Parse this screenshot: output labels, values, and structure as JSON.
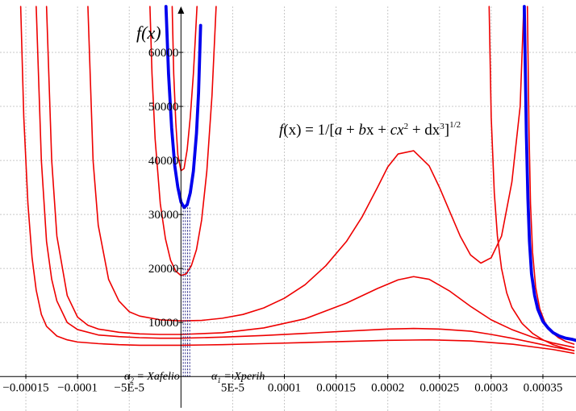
{
  "chart_data": {
    "type": "line",
    "title": "",
    "ylabel": "f(x)",
    "xlabel": "",
    "xlim": [
      -0.000175,
      0.000382
    ],
    "ylim": [
      -1300,
      68500
    ],
    "grid": true,
    "x_ticks": [
      {
        "value": -0.00015,
        "label": "−0.00015"
      },
      {
        "value": -0.0001,
        "label": "−0.0001"
      },
      {
        "value": -5e-05,
        "label": "−5E-5"
      },
      {
        "value": 5e-05,
        "label": "5E-5"
      },
      {
        "value": 0.0001,
        "label": "0.0001"
      },
      {
        "value": 0.00015,
        "label": "0.00015"
      },
      {
        "value": 0.0002,
        "label": "0.0002"
      },
      {
        "value": 0.00025,
        "label": "0.00025"
      },
      {
        "value": 0.0003,
        "label": "0.0003"
      },
      {
        "value": 0.00035,
        "label": "0.00035"
      }
    ],
    "y_ticks": [
      {
        "value": 10000,
        "label": "10000"
      },
      {
        "value": 20000,
        "label": "20000"
      },
      {
        "value": 30000,
        "label": "30000"
      },
      {
        "value": 40000,
        "label": "40000"
      },
      {
        "value": 50000,
        "label": "50000"
      },
      {
        "value": 60000,
        "label": "60000"
      }
    ],
    "formula": {
      "f": "f",
      "x1": "(x) = 1/[",
      "a": "a",
      "p1": " + ",
      "b": "b",
      "x2": "x + ",
      "c": "c",
      "x3": "x",
      "sq": "2",
      "p2": " + dx",
      "cu": "3",
      "close": "]",
      "pow": "1/2"
    },
    "annotations": {
      "alpha2": {
        "alpha": "α",
        "sub": "2",
        "text": " = Xafelio"
      },
      "alpha1": {
        "alpha": "α",
        "sub": "1",
        "text": " = Xperih"
      }
    },
    "markers": {
      "x_values": [
        2.2e-06,
        4.3e-06,
        6.4e-06,
        8.5e-06
      ]
    },
    "series": [
      {
        "color": "#0000ee",
        "width": 3.8,
        "segments": [
          {
            "x": [
              -1.45e-05,
              -1.2e-05,
              -9e-06,
              -6e-06,
              -3e-06,
              0.0,
              3e-06,
              6e-06,
              9e-06,
              1.2e-05,
              1.5e-05,
              1.7e-05,
              1.9e-05
            ],
            "y": [
              68500,
              56000,
              46000,
              39000,
              35000,
              32300,
              31300,
              31800,
              34000,
              38000,
              45000,
              52500,
              65000
            ]
          },
          {
            "x": [
              0.000332,
              0.000334,
              0.0003355,
              0.000337,
              0.000339,
              0.000342,
              0.000345,
              0.00035,
              0.000355,
              0.00036,
              0.000366,
              0.000372,
              0.000378,
              0.000382
            ],
            "y": [
              68500,
              45000,
              33000,
              25000,
              19000,
              15000,
              12500,
              10200,
              9000,
              8100,
              7500,
              7100,
              6900,
              6700
            ]
          }
        ]
      },
      {
        "color": "#ee0000",
        "width": 1.6,
        "segments": [
          {
            "x": [
              -8.5e-06,
              -7e-06,
              -5e-06,
              -3e-06,
              0.0,
              3e-06,
              6e-06,
              9e-06,
              1.2e-05,
              1.4e-05,
              1.55e-05
            ],
            "y": [
              68500,
              56000,
              47000,
              41000,
              38100,
              38500,
              42000,
              48000,
              56000,
              63000,
              68500
            ]
          }
        ]
      },
      {
        "color": "#ee0000",
        "width": 1.6,
        "segments": [
          {
            "x": [
              -3e-05,
              -2.8e-05,
              -2.5e-05,
              -2e-05,
              -1.5e-05,
              -1e-05,
              -5e-06,
              0.0,
              5e-06,
              1e-05,
              1.5e-05,
              2e-05,
              2.5e-05,
              3e-05,
              3.4e-05
            ],
            "y": [
              68500,
              56000,
              44000,
              32000,
              25500,
              21500,
              19500,
              18700,
              19000,
              20500,
              23500,
              29000,
              38000,
              52000,
              68500
            ]
          }
        ]
      },
      {
        "color": "#ee0000",
        "width": 1.6,
        "segments": [
          {
            "x": [
              -9e-05,
              -8.5e-05,
              -8e-05,
              -7e-05,
              -6e-05,
              -5e-05,
              -4e-05,
              -2e-05,
              0.0,
              2e-05,
              4e-05,
              6e-05,
              8e-05,
              0.0001,
              0.00012,
              0.00014,
              0.00016,
              0.000175,
              0.00019,
              0.0002,
              0.00021,
              0.000225,
              0.00024,
              0.00025,
              0.00026,
              0.00027,
              0.00028,
              0.00029,
              0.0003,
              0.00031,
              0.00032,
              0.000328,
              0.0003315
            ],
            "y": [
              68500,
              40000,
              28000,
              18000,
              14000,
              12000,
              11200,
              10500,
              10300,
              10400,
              10800,
              11500,
              12700,
              14500,
              17000,
              20500,
              25000,
              29500,
              35000,
              38800,
              41200,
              41800,
              39000,
              35000,
              30500,
              26000,
              22500,
              21000,
              22000,
              26000,
              36000,
              50000,
              68500
            ]
          }
        ]
      },
      {
        "color": "#ee0000",
        "width": 1.6,
        "segments": [
          {
            "x": [
              -0.00013,
              -0.000125,
              -0.00012,
              -0.00011,
              -0.0001,
              -9e-05,
              -8e-05,
              -6e-05,
              -4e-05,
              -2e-05,
              0.0,
              4e-05,
              8e-05,
              0.00012,
              0.00016,
              0.00019,
              0.00021,
              0.000225,
              0.00024,
              0.00026,
              0.00028,
              0.0003,
              0.00032,
              0.00034,
              0.00036,
              0.00038
            ],
            "y": [
              68500,
              40000,
              26000,
              15000,
              11000,
              9500,
              8800,
              8200,
              7900,
              7800,
              7800,
              8100,
              9000,
              10700,
              13600,
              16300,
              17900,
              18500,
              18000,
              15800,
              13000,
              10500,
              8700,
              7300,
              6200,
              5400
            ]
          }
        ]
      },
      {
        "color": "#ee0000",
        "width": 1.6,
        "segments": [
          {
            "x": [
              -0.00014,
              -0.000135,
              -0.00013,
              -0.000125,
              -0.00012,
              -0.00011,
              -0.0001,
              -8e-05,
              -6e-05,
              -4e-05,
              -2e-05,
              0.0,
              4e-05,
              8e-05,
              0.00012,
              0.00016,
              0.0002,
              0.000225,
              0.00025,
              0.00028,
              0.0003,
              0.00032,
              0.00034,
              0.00036,
              0.00038
            ],
            "y": [
              68500,
              40000,
              25000,
              18000,
              14000,
              10000,
              8700,
              7700,
              7400,
              7200,
              7100,
              7100,
              7300,
              7600,
              8000,
              8400,
              8800,
              8900,
              8800,
              8400,
              7800,
              7100,
              6300,
              5500,
              4800
            ]
          }
        ]
      },
      {
        "color": "#ee0000",
        "width": 1.6,
        "segments": [
          {
            "x": [
              -0.000155,
              -0.000152,
              -0.000148,
              -0.000144,
              -0.00014,
              -0.000135,
              -0.00013,
              -0.00012,
              -0.00011,
              -0.0001,
              -8e-05,
              -6e-05,
              -4e-05,
              0.0,
              4e-05,
              8e-05,
              0.00012,
              0.00016,
              0.0002,
              0.00024,
              0.00028,
              0.00032,
              0.00036,
              0.00038
            ],
            "y": [
              68500,
              48000,
              32000,
              22000,
              16000,
              11500,
              9300,
              7500,
              6800,
              6400,
              6100,
              5900,
              5800,
              5800,
              5900,
              6100,
              6300,
              6500,
              6700,
              6800,
              6600,
              6000,
              5000,
              4300
            ]
          }
        ]
      },
      {
        "color": "#ee0000",
        "width": 1.6,
        "segments": [
          {
            "x": [
              0.000298,
              0.0003,
              0.000303,
              0.000306,
              0.00031,
              0.000315,
              0.00032,
              0.00033,
              0.00034,
              0.00035,
              0.00036,
              0.00037,
              0.00038
            ],
            "y": [
              68500,
              48000,
              34000,
              26000,
              20000,
              15500,
              12800,
              9800,
              8000,
              6800,
              5900,
              5300,
              4800
            ]
          }
        ]
      },
      {
        "color": "#ee0000",
        "width": 1.6,
        "segments": [
          {
            "x": [
              0.000335,
              0.0003365,
              0.000338,
              0.00034,
              0.000343,
              0.000347,
              0.000352,
              0.000358,
              0.000365,
              0.000372,
              0.00038
            ],
            "y": [
              68500,
              46000,
              32000,
              23000,
              16500,
              12500,
              10000,
              8300,
              7200,
              6500,
              6000
            ]
          }
        ]
      }
    ]
  }
}
